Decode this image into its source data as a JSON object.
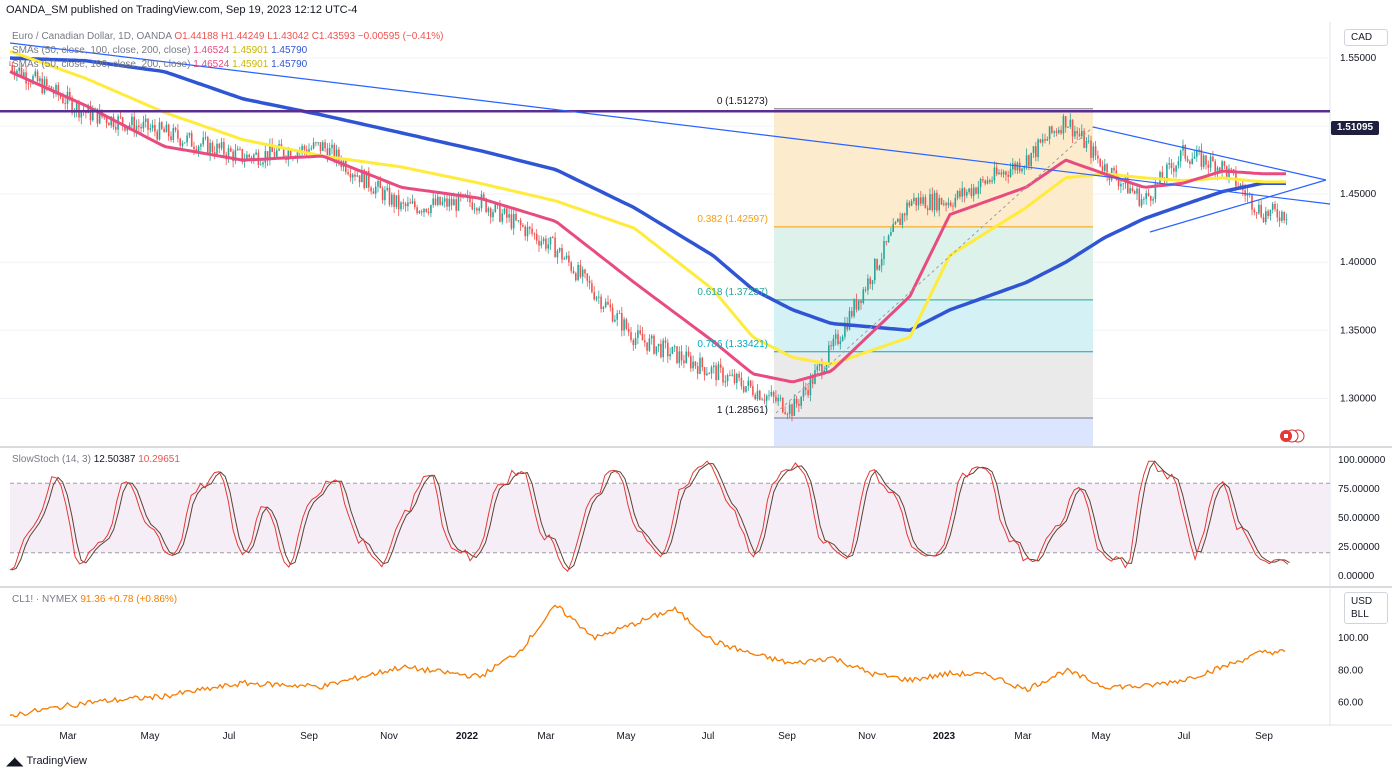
{
  "header": {
    "publisher": "OANDA_SM published on TradingView.com, Sep 19, 2023 12:12 UTC-4"
  },
  "footer": {
    "brand": "TradingView"
  },
  "colors": {
    "up": "#26a69a",
    "down": "#ef5350",
    "sma50": "#e84b7f",
    "sma100": "#ffeb3b",
    "sma200": "#2f55d4",
    "trend": "#2962ff",
    "resistance": "#5b2d91",
    "oil": "#f57c00",
    "stoch_k": "#e53935",
    "stoch_d": "#5d4037"
  },
  "price_panel": {
    "symbol_line": {
      "name": "Euro / Canadian Dollar, 1D, OANDA",
      "o": "O1.44188",
      "h": "H1.44249",
      "l": "L1.43042",
      "c": "C1.43593",
      "chg": "−0.00595 (−0.41%)"
    },
    "sma_legend": [
      {
        "label": "SMAs (50, close, 100, close, 200, close)",
        "v1": "1.46524",
        "v2": "1.45901",
        "v3": "1.45790"
      },
      {
        "label": "SMAs (50, close, 100, close, 200, close)",
        "v1": "1.46524",
        "v2": "1.45901",
        "v3": "1.45790"
      }
    ],
    "currency": "CAD",
    "last_price_label": "1.51095",
    "y_ticks": [
      "1.55000",
      "1.50000",
      "1.45000",
      "1.40000",
      "1.35000",
      "1.30000"
    ],
    "fib_labels": [
      "0 (1.51273)",
      "0.382 (1.42597)",
      "0.618 (1.37237)",
      "0.786 (1.33421)",
      "1 (1.28561)"
    ]
  },
  "stoch_panel": {
    "legend": {
      "label": "SlowStoch (14, 3)",
      "k": "12.50387",
      "d": "10.29651"
    },
    "y_ticks": [
      "100.00000",
      "75.00000",
      "50.00000",
      "25.00000",
      "0.00000"
    ]
  },
  "oil_panel": {
    "legend": {
      "label": "CL1! · NYMEX",
      "value": "91.36",
      "chg": "+0.78 (+0.86%)"
    },
    "unit_1": "USD",
    "unit_2": "BLL",
    "y_ticks": [
      "100.00",
      "80.00",
      "60.00"
    ]
  },
  "x_axis": {
    "labels": [
      "Mar",
      "May",
      "Jul",
      "Sep",
      "Nov",
      "2022",
      "Mar",
      "May",
      "Jul",
      "Sep",
      "Nov",
      "2023",
      "Mar",
      "May",
      "Jul",
      "Sep"
    ]
  },
  "chart_data": [
    {
      "type": "line",
      "x": [
        "2021-01",
        "2021-03",
        "2021-05",
        "2021-07",
        "2021-09",
        "2021-11",
        "2022-01",
        "2022-03",
        "2022-05",
        "2022-07",
        "2022-08",
        "2022-09",
        "2022-10",
        "2022-12",
        "2023-01",
        "2023-03",
        "2023-04",
        "2023-05",
        "2023-06",
        "2023-07",
        "2023-08",
        "2023-09"
      ],
      "series": [
        {
          "values": [
            1.545,
            1.51,
            1.495,
            1.477,
            1.485,
            1.44,
            1.445,
            1.41,
            1.345,
            1.32,
            1.307,
            1.292,
            1.335,
            1.445,
            1.445,
            1.475,
            1.505,
            1.47,
            1.445,
            1.48,
            1.47,
            1.436
          ]
        },
        {
          "values": [
            1.54,
            1.515,
            1.485,
            1.475,
            1.478,
            1.455,
            1.447,
            1.43,
            1.385,
            1.342,
            1.318,
            1.312,
            1.32,
            1.375,
            1.435,
            1.455,
            1.475,
            1.465,
            1.455,
            1.458,
            1.467,
            1.465
          ]
        },
        {
          "values": [
            1.555,
            1.535,
            1.51,
            1.49,
            1.478,
            1.47,
            1.458,
            1.445,
            1.425,
            1.38,
            1.345,
            1.33,
            1.325,
            1.345,
            1.405,
            1.44,
            1.462,
            1.465,
            1.462,
            1.46,
            1.462,
            1.459
          ]
        },
        {
          "values": [
            1.55,
            1.548,
            1.54,
            1.52,
            1.508,
            1.495,
            1.482,
            1.468,
            1.44,
            1.405,
            1.38,
            1.365,
            1.355,
            1.35,
            1.365,
            1.385,
            1.4,
            1.418,
            1.432,
            1.442,
            1.452,
            1.458
          ]
        }
      ],
      "ylim": [
        1.265,
        1.575
      ],
      "levels": {
        "resistance": 1.51095,
        "fib": [
          1.51273,
          1.42597,
          1.37237,
          1.33421,
          1.28561
        ]
      }
    },
    {
      "type": "line",
      "series": [
        {
          "values": [
            8,
            45,
            88,
            12,
            30,
            82,
            40,
            15,
            75,
            88,
            20,
            60,
            10,
            70,
            85,
            30,
            12,
            55,
            90,
            25,
            15,
            78,
            92,
            35,
            8,
            65,
            95,
            40,
            15,
            80,
            100,
            60,
            20,
            85,
            96,
            30,
            12,
            90,
            70,
            20,
            18,
            88,
            95,
            30,
            10,
            40,
            80,
            20,
            10,
            98,
            85,
            18,
            82,
            40,
            12,
            10
          ]
        }
      ],
      "ylim": [
        0,
        100
      ],
      "levels": [
        80,
        20
      ]
    },
    {
      "type": "line",
      "x": [
        "2021-01",
        "2021-03",
        "2021-05",
        "2021-07",
        "2021-09",
        "2021-11",
        "2022-01",
        "2022-02",
        "2022-03",
        "2022-04",
        "2022-06",
        "2022-07",
        "2022-08",
        "2022-09",
        "2022-10",
        "2022-11",
        "2022-12",
        "2023-01",
        "2023-02",
        "2023-03",
        "2023-04",
        "2023-05",
        "2023-06",
        "2023-07",
        "2023-08",
        "2023-09"
      ],
      "series": [
        {
          "values": [
            52,
            60,
            64,
            72,
            70,
            82,
            76,
            92,
            120,
            100,
            118,
            98,
            90,
            84,
            88,
            78,
            74,
            78,
            77,
            68,
            80,
            70,
            70,
            74,
            82,
            91.36
          ]
        }
      ],
      "ylim": [
        48,
        126
      ]
    }
  ]
}
